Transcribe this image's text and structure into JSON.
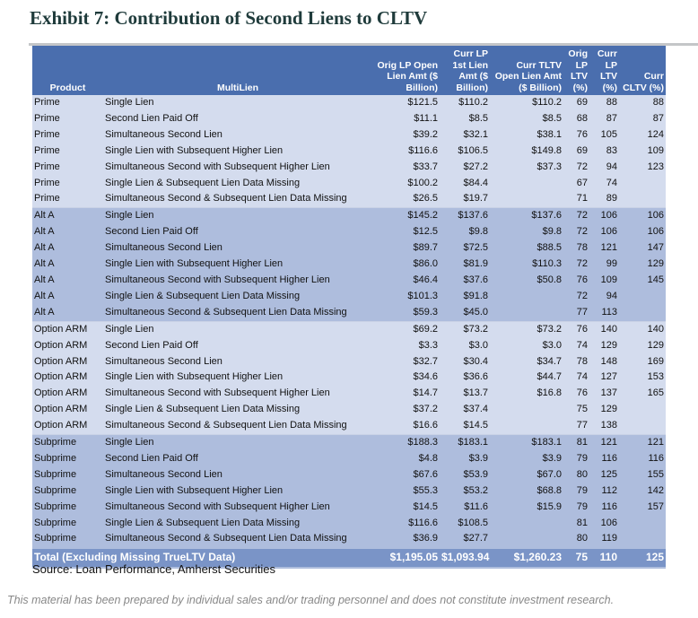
{
  "title": "Exhibit 7:  Contribution of Second Liens to CLTV",
  "colors": {
    "header": "#4a6eae",
    "band_light": "#d4dcee",
    "band_dark": "#aebddd",
    "total": "#7a94c7",
    "title": "#1f3b3b"
  },
  "table": {
    "headers": [
      "Product",
      "MultiLien",
      "Orig LP Open Lien Amt ($ Billion)",
      "Curr LP 1st Lien Amt ($ Billion)",
      "Curr TLTV Open Lien Amt ($ Billion)",
      "Orig LP LTV (%)",
      "Curr LP LTV (%)",
      "Curr CLTV (%)"
    ],
    "rows": [
      [
        "Prime",
        "Single Lien",
        "$121.5",
        "$110.2",
        "$110.2",
        "69",
        "88",
        "88"
      ],
      [
        "Prime",
        "Second Lien Paid Off",
        "$11.1",
        "$8.5",
        "$8.5",
        "68",
        "87",
        "87"
      ],
      [
        "Prime",
        "Simultaneous Second Lien",
        "$39.2",
        "$32.1",
        "$38.1",
        "76",
        "105",
        "124"
      ],
      [
        "Prime",
        "Single Lien with Subsequent Higher Lien",
        "$116.6",
        "$106.5",
        "$149.8",
        "69",
        "83",
        "109"
      ],
      [
        "Prime",
        "Simultaneous Second with Subsequent Higher Lien",
        "$33.7",
        "$27.2",
        "$37.3",
        "72",
        "94",
        "123"
      ],
      [
        "Prime",
        "Single Lien & Subsequent Lien Data Missing",
        "$100.2",
        "$84.4",
        "",
        "67",
        "74",
        ""
      ],
      [
        "Prime",
        "Simultaneous Second & Subsequent Lien Data Missing",
        "$26.5",
        "$19.7",
        "",
        "71",
        "89",
        ""
      ],
      [
        "Alt A",
        "Single Lien",
        "$145.2",
        "$137.6",
        "$137.6",
        "72",
        "106",
        "106"
      ],
      [
        "Alt A",
        "Second Lien Paid Off",
        "$12.5",
        "$9.8",
        "$9.8",
        "72",
        "106",
        "106"
      ],
      [
        "Alt A",
        "Simultaneous Second Lien",
        "$89.7",
        "$72.5",
        "$88.5",
        "78",
        "121",
        "147"
      ],
      [
        "Alt A",
        "Single Lien with Subsequent Higher Lien",
        "$86.0",
        "$81.9",
        "$110.3",
        "72",
        "99",
        "129"
      ],
      [
        "Alt A",
        "Simultaneous Second with Subsequent Higher Lien",
        "$46.4",
        "$37.6",
        "$50.8",
        "76",
        "109",
        "145"
      ],
      [
        "Alt A",
        "Single Lien & Subsequent Lien Data Missing",
        "$101.3",
        "$91.8",
        "",
        "72",
        "94",
        ""
      ],
      [
        "Alt A",
        "Simultaneous Second & Subsequent Lien Data Missing",
        "$59.3",
        "$45.0",
        "",
        "77",
        "113",
        ""
      ],
      [
        "Option ARM",
        "Single Lien",
        "$69.2",
        "$73.2",
        "$73.2",
        "76",
        "140",
        "140"
      ],
      [
        "Option ARM",
        "Second Lien Paid Off",
        "$3.3",
        "$3.0",
        "$3.0",
        "74",
        "129",
        "129"
      ],
      [
        "Option ARM",
        "Simultaneous Second Lien",
        "$32.7",
        "$30.4",
        "$34.7",
        "78",
        "148",
        "169"
      ],
      [
        "Option ARM",
        "Single Lien with Subsequent Higher Lien",
        "$34.6",
        "$36.6",
        "$44.7",
        "74",
        "127",
        "153"
      ],
      [
        "Option ARM",
        "Simultaneous Second with Subsequent Higher Lien",
        "$14.7",
        "$13.7",
        "$16.8",
        "76",
        "137",
        "165"
      ],
      [
        "Option ARM",
        "Single Lien & Subsequent Lien Data Missing",
        "$37.2",
        "$37.4",
        "",
        "75",
        "129",
        ""
      ],
      [
        "Option ARM",
        "Simultaneous Second & Subsequent Lien Data Missing",
        "$16.6",
        "$14.5",
        "",
        "77",
        "138",
        ""
      ],
      [
        "Subprime",
        "Single Lien",
        "$188.3",
        "$183.1",
        "$183.1",
        "81",
        "121",
        "121"
      ],
      [
        "Subprime",
        "Second Lien Paid Off",
        "$4.8",
        "$3.9",
        "$3.9",
        "79",
        "116",
        "116"
      ],
      [
        "Subprime",
        "Simultaneous Second Lien",
        "$67.6",
        "$53.9",
        "$67.0",
        "80",
        "125",
        "155"
      ],
      [
        "Subprime",
        "Single Lien with Subsequent Higher Lien",
        "$55.3",
        "$53.2",
        "$68.8",
        "79",
        "112",
        "142"
      ],
      [
        "Subprime",
        "Simultaneous Second with Subsequent Higher Lien",
        "$14.5",
        "$11.6",
        "$15.9",
        "79",
        "116",
        "157"
      ],
      [
        "Subprime",
        "Single Lien & Subsequent Lien Data Missing",
        "$116.6",
        "$108.5",
        "",
        "81",
        "106",
        ""
      ],
      [
        "Subprime",
        "Simultaneous Second & Subsequent Lien Data Missing",
        "$36.9",
        "$27.7",
        "",
        "80",
        "119",
        ""
      ]
    ],
    "total": [
      "Total (Excluding Missing TrueLTV Data)",
      "$1,195.05",
      "$1,093.94",
      "$1,260.23",
      "75",
      "110",
      "125"
    ]
  },
  "source": "Source:  Loan Performance, Amherst Securities",
  "disclaimer": "This material has been prepared by individual sales and/or trading personnel and does not constitute investment research."
}
